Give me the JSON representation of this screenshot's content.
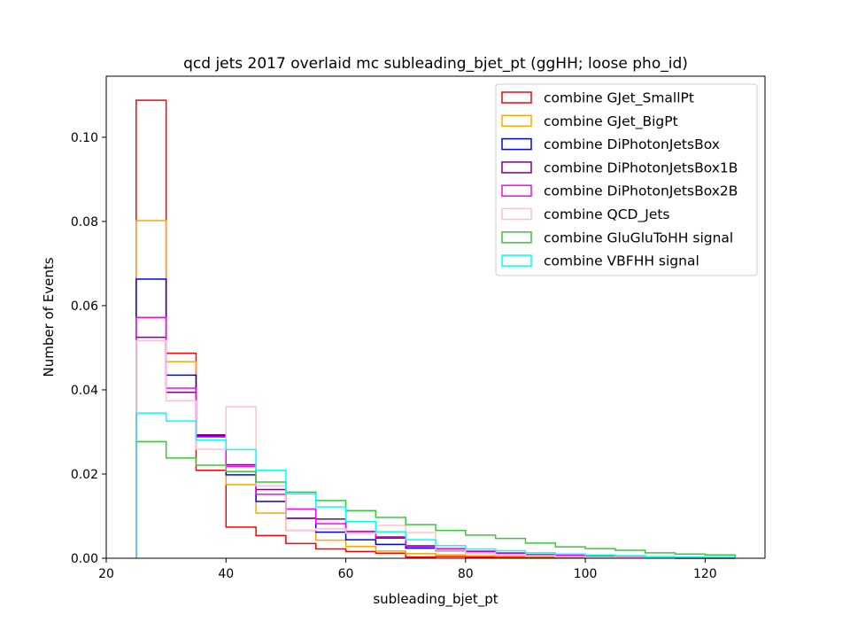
{
  "chart_data": {
    "type": "step-histogram",
    "title": "qcd jets 2017 overlaid mc subleading_bjet_pt (ggHH; loose pho_id)",
    "xlabel": "subleading_bjet_pt",
    "ylabel": "Number of Events",
    "xlim": [
      20,
      130
    ],
    "ylim": [
      0,
      0.1145
    ],
    "xticks": [
      20,
      40,
      60,
      80,
      100,
      120
    ],
    "xtick_labels": [
      "20",
      "40",
      "60",
      "80",
      "100",
      "120"
    ],
    "yticks": [
      0.0,
      0.02,
      0.04,
      0.06,
      0.08,
      0.1
    ],
    "ytick_labels": [
      "0.00",
      "0.02",
      "0.04",
      "0.06",
      "0.08",
      "0.10"
    ],
    "bin_edges": [
      25,
      30,
      35,
      40,
      45,
      50,
      55,
      60,
      65,
      70,
      75,
      80,
      85,
      90,
      95,
      100,
      105,
      110,
      115,
      120,
      125
    ],
    "legend_position": "upper right",
    "grid": false,
    "series": [
      {
        "name": "combine GJet_SmallPt",
        "color": "#ff0000",
        "values": [
          0.1088,
          0.0487,
          0.0209,
          0.0074,
          0.0054,
          0.0035,
          0.0022,
          0.0016,
          0.0012,
          0.0003,
          0.0004,
          0.0003,
          0.0003,
          0.0002,
          0.0002,
          0.0001,
          0.0001,
          0.0001,
          0.0,
          0.0
        ]
      },
      {
        "name": "combine GJet_BigPt",
        "color": "#ffa500",
        "values": [
          0.0802,
          0.0467,
          0.0289,
          0.0175,
          0.0107,
          0.0066,
          0.0043,
          0.0028,
          0.0017,
          0.0011,
          0.0008,
          0.0006,
          0.0005,
          0.0004,
          0.0003,
          0.0002,
          0.0002,
          0.0001,
          0.0001,
          0.0001
        ]
      },
      {
        "name": "combine DiPhotonJetsBox",
        "color": "#0000ff",
        "values": [
          0.0663,
          0.0435,
          0.0291,
          0.0198,
          0.0135,
          0.0095,
          0.0062,
          0.0044,
          0.0033,
          0.0024,
          0.0018,
          0.0013,
          0.001,
          0.0007,
          0.0005,
          0.0004,
          0.0003,
          0.0002,
          0.0002,
          0.0001
        ]
      },
      {
        "name": "combine DiPhotonJetsBox1B",
        "color": "#800080",
        "values": [
          0.0525,
          0.0394,
          0.0293,
          0.0222,
          0.0163,
          0.0095,
          0.0093,
          0.0064,
          0.0048,
          0.0028,
          0.0022,
          0.0015,
          0.0011,
          0.0009,
          0.0006,
          0.0004,
          0.0003,
          0.0002,
          0.0002,
          0.0001
        ]
      },
      {
        "name": "combine DiPhotonJetsBox2B",
        "color": "#ff00ff",
        "values": [
          0.0572,
          0.0404,
          0.0288,
          0.0218,
          0.0152,
          0.0117,
          0.0082,
          0.0063,
          0.0051,
          0.003,
          0.0023,
          0.0017,
          0.0013,
          0.0009,
          0.0007,
          0.0005,
          0.0004,
          0.0003,
          0.0002,
          0.0001
        ]
      },
      {
        "name": "combine QCD_Jets",
        "color": "#ffc0cb",
        "values": [
          0.0517,
          0.0374,
          0.0259,
          0.036,
          0.0172,
          0.0066,
          0.007,
          0.006,
          0.0078,
          0.0061,
          0.0019,
          0.0013,
          0.0009,
          0.0006,
          0.0004,
          0.0003,
          0.0002,
          0.0002,
          0.0001,
          0.0001
        ]
      },
      {
        "name": "combine GluGluToHH signal",
        "color": "#33cc33",
        "values": [
          0.0277,
          0.0238,
          0.0221,
          0.0206,
          0.0181,
          0.0157,
          0.0137,
          0.0113,
          0.0097,
          0.008,
          0.0066,
          0.0055,
          0.0047,
          0.0036,
          0.0027,
          0.0023,
          0.0019,
          0.0013,
          0.001,
          0.0008
        ]
      },
      {
        "name": "combine VBFHH signal",
        "color": "#00ffff",
        "values": [
          0.0345,
          0.0326,
          0.0281,
          0.0258,
          0.0209,
          0.0153,
          0.0122,
          0.0087,
          0.0063,
          0.0044,
          0.003,
          0.0022,
          0.0018,
          0.0013,
          0.001,
          0.0008,
          0.0006,
          0.0004,
          0.0003,
          0.0002
        ]
      }
    ]
  }
}
